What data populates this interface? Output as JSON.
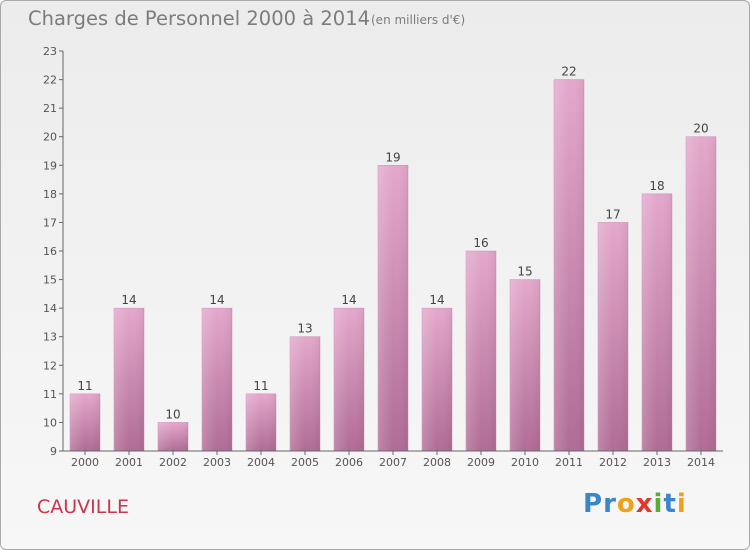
{
  "header": {
    "title": "Charges de Personnel 2000 à 2014",
    "subtitle": "(en milliers d'€)"
  },
  "footer": {
    "commune": "CAUVILLE",
    "brand_letters": [
      {
        "ch": "P",
        "color": "#3a86c8"
      },
      {
        "ch": "r",
        "color": "#3a86c8"
      },
      {
        "ch": "o",
        "color": "#f0a11a"
      },
      {
        "ch": "x",
        "color": "#e2352c"
      },
      {
        "ch": "i",
        "color": "#5cab3a"
      },
      {
        "ch": "t",
        "color": "#3a86c8"
      },
      {
        "ch": "i",
        "color": "#f0a11a"
      }
    ]
  },
  "chart_data": {
    "type": "bar",
    "title": "Charges de Personnel 2000 à 2014",
    "subtitle": "(en milliers d'€)",
    "categories": [
      "2000",
      "2001",
      "2002",
      "2003",
      "2004",
      "2005",
      "2006",
      "2007",
      "2008",
      "2009",
      "2010",
      "2011",
      "2012",
      "2013",
      "2014"
    ],
    "values": [
      11,
      14,
      10,
      14,
      11,
      13,
      14,
      19,
      14,
      16,
      15,
      22,
      17,
      18,
      20
    ],
    "ylim": [
      9,
      23
    ],
    "yticks": [
      9,
      10,
      11,
      12,
      13,
      14,
      15,
      16,
      17,
      18,
      19,
      20,
      21,
      22,
      23
    ],
    "ytick_labels": [
      "9",
      "10",
      "11",
      "12",
      "13",
      "14",
      "15",
      "16",
      "17",
      "18",
      "19",
      "20",
      "21",
      "22",
      "23"
    ],
    "grid": false,
    "bar_color_top": "#e4a8cc",
    "bar_color_bottom": "#b06c96"
  }
}
